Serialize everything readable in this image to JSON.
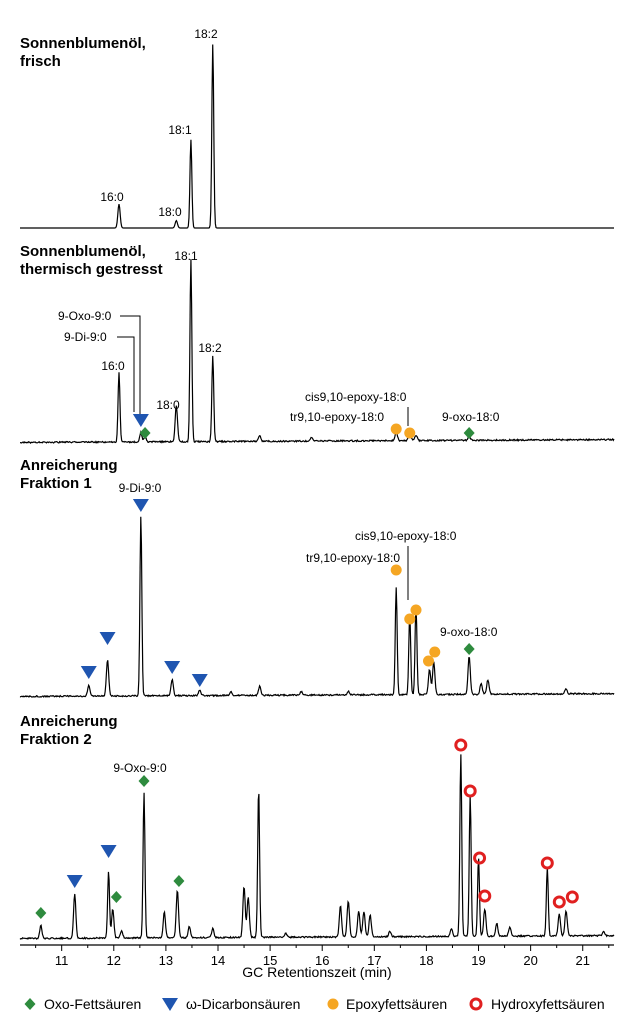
{
  "chart_data": {
    "type": "line",
    "subtype": "stacked gas chromatograms",
    "xlabel": "GC Retentionszeit (min)",
    "xlim": [
      10.2,
      21.6
    ],
    "xticks": [
      11,
      12,
      13,
      14,
      15,
      16,
      17,
      18,
      19,
      20,
      21
    ],
    "colors": {
      "trace": "#000000",
      "oxo": "#2e8b3e",
      "dicarbon": "#1f55b0",
      "epoxy": "#f5a623",
      "hydroxy": "#e02020"
    },
    "legend": {
      "placement": "bottom",
      "items": [
        {
          "label": "Oxo-Fettsäuren",
          "marker": "diamond",
          "color": "#2e8b3e"
        },
        {
          "label": "ω-Dicarbonsäuren",
          "marker": "triangle-down",
          "color": "#1f55b0"
        },
        {
          "label": "Epoxyfettsäuren",
          "marker": "circle",
          "color": "#f5a623"
        },
        {
          "label": "Hydroxyfettsäuren",
          "marker": "ring",
          "color": "#e02020"
        }
      ]
    },
    "panels": [
      {
        "title_lines": [
          "Sonnenblumenöl,",
          "frisch"
        ],
        "peaks": [
          {
            "x": 12.1,
            "h": 0.13
          },
          {
            "x": 13.2,
            "h": 0.04
          },
          {
            "x": 13.48,
            "h": 0.48
          },
          {
            "x": 13.9,
            "h": 1.0
          }
        ],
        "labels": [
          {
            "text": "16:0",
            "x": 12.1
          },
          {
            "text": "18:0",
            "x": 13.2
          },
          {
            "text": "18:1",
            "x": 13.48
          },
          {
            "text": "18:2",
            "x": 13.9
          }
        ],
        "markers": []
      },
      {
        "title_lines": [
          "Sonnenblumenöl,",
          "thermisch gestresst"
        ],
        "peaks": [
          {
            "x": 12.1,
            "h": 0.38
          },
          {
            "x": 12.52,
            "h": 0.05
          },
          {
            "x": 12.6,
            "h": 0.03
          },
          {
            "x": 13.2,
            "h": 0.2
          },
          {
            "x": 13.48,
            "h": 1.0
          },
          {
            "x": 13.9,
            "h": 0.47
          },
          {
            "x": 14.8,
            "h": 0.03
          },
          {
            "x": 15.8,
            "h": 0.02
          },
          {
            "x": 17.42,
            "h": 0.05
          },
          {
            "x": 17.68,
            "h": 0.05
          },
          {
            "x": 17.8,
            "h": 0.03
          },
          {
            "x": 18.82,
            "h": 0.02
          }
        ],
        "labels": [
          {
            "text": "16:0",
            "x": 12.1
          },
          {
            "text": "18:0",
            "x": 13.2
          },
          {
            "text": "18:1",
            "x": 13.48
          },
          {
            "text": "18:2",
            "x": 13.9
          },
          {
            "text": "9-Oxo-9:0",
            "x": 12.6
          },
          {
            "text": "9-Di-9:0",
            "x": 12.52
          },
          {
            "text": "cis9,10-epoxy-18:0",
            "x": 17.68
          },
          {
            "text": "tr9,10-epoxy-18:0",
            "x": 17.42
          },
          {
            "text": "9-oxo-18:0",
            "x": 18.82
          }
        ],
        "markers": [
          {
            "type": "dicarbon",
            "x": 12.52
          },
          {
            "type": "oxo",
            "x": 12.6
          },
          {
            "type": "epoxy",
            "x": 17.42
          },
          {
            "type": "epoxy",
            "x": 17.68
          },
          {
            "type": "oxo",
            "x": 18.82
          }
        ]
      },
      {
        "title_lines": [
          "Anreicherung",
          "Fraktion 1"
        ],
        "peaks": [
          {
            "x": 11.52,
            "h": 0.06
          },
          {
            "x": 11.88,
            "h": 0.2
          },
          {
            "x": 12.52,
            "h": 1.0
          },
          {
            "x": 13.12,
            "h": 0.09
          },
          {
            "x": 13.65,
            "h": 0.03
          },
          {
            "x": 14.25,
            "h": 0.02
          },
          {
            "x": 14.8,
            "h": 0.05
          },
          {
            "x": 15.6,
            "h": 0.02
          },
          {
            "x": 16.5,
            "h": 0.02
          },
          {
            "x": 17.42,
            "h": 0.6
          },
          {
            "x": 17.68,
            "h": 0.45
          },
          {
            "x": 17.8,
            "h": 0.5
          },
          {
            "x": 18.06,
            "h": 0.14
          },
          {
            "x": 18.14,
            "h": 0.18
          },
          {
            "x": 18.82,
            "h": 0.21
          },
          {
            "x": 19.05,
            "h": 0.06
          },
          {
            "x": 19.18,
            "h": 0.08
          },
          {
            "x": 20.68,
            "h": 0.03
          }
        ],
        "labels": [
          {
            "text": "9-Di-9:0",
            "x": 12.52
          },
          {
            "text": "cis9,10-epoxy-18:0",
            "x": 17.68
          },
          {
            "text": "tr9,10-epoxy-18:0",
            "x": 17.42
          },
          {
            "text": "9-oxo-18:0",
            "x": 18.82
          }
        ],
        "markers": [
          {
            "type": "dicarbon",
            "x": 11.52
          },
          {
            "type": "dicarbon",
            "x": 11.88
          },
          {
            "type": "dicarbon",
            "x": 12.52
          },
          {
            "type": "dicarbon",
            "x": 13.12
          },
          {
            "type": "dicarbon",
            "x": 13.65
          },
          {
            "type": "epoxy",
            "x": 17.42
          },
          {
            "type": "epoxy",
            "x": 17.68
          },
          {
            "type": "epoxy",
            "x": 17.8
          },
          {
            "type": "epoxy",
            "x": 18.04
          },
          {
            "type": "epoxy",
            "x": 18.16
          },
          {
            "type": "oxo",
            "x": 18.82
          }
        ]
      },
      {
        "title_lines": [
          "Anreicherung",
          "Fraktion 2"
        ],
        "peaks": [
          {
            "x": 10.6,
            "h": 0.07
          },
          {
            "x": 11.25,
            "h": 0.24
          },
          {
            "x": 11.9,
            "h": 0.37
          },
          {
            "x": 11.98,
            "h": 0.16
          },
          {
            "x": 12.15,
            "h": 0.04
          },
          {
            "x": 12.58,
            "h": 0.8
          },
          {
            "x": 12.97,
            "h": 0.14
          },
          {
            "x": 13.22,
            "h": 0.26
          },
          {
            "x": 13.45,
            "h": 0.06
          },
          {
            "x": 13.9,
            "h": 0.05
          },
          {
            "x": 14.5,
            "h": 0.28
          },
          {
            "x": 14.58,
            "h": 0.22
          },
          {
            "x": 14.78,
            "h": 0.82
          },
          {
            "x": 15.3,
            "h": 0.02
          },
          {
            "x": 16.35,
            "h": 0.17
          },
          {
            "x": 16.5,
            "h": 0.2
          },
          {
            "x": 16.7,
            "h": 0.14
          },
          {
            "x": 16.8,
            "h": 0.14
          },
          {
            "x": 16.92,
            "h": 0.12
          },
          {
            "x": 17.3,
            "h": 0.03
          },
          {
            "x": 18.48,
            "h": 0.04
          },
          {
            "x": 18.66,
            "h": 1.0
          },
          {
            "x": 18.84,
            "h": 0.78
          },
          {
            "x": 19.0,
            "h": 0.43
          },
          {
            "x": 19.12,
            "h": 0.15
          },
          {
            "x": 19.35,
            "h": 0.07
          },
          {
            "x": 19.6,
            "h": 0.05
          },
          {
            "x": 20.32,
            "h": 0.38
          },
          {
            "x": 20.55,
            "h": 0.12
          },
          {
            "x": 20.68,
            "h": 0.14
          },
          {
            "x": 21.4,
            "h": 0.02
          }
        ],
        "labels": [
          {
            "text": "9-Oxo-9:0",
            "x": 12.58
          }
        ],
        "markers": [
          {
            "type": "oxo",
            "x": 10.6
          },
          {
            "type": "dicarbon",
            "x": 11.25
          },
          {
            "type": "dicarbon",
            "x": 11.9
          },
          {
            "type": "oxo",
            "x": 12.05
          },
          {
            "type": "oxo",
            "x": 12.58
          },
          {
            "type": "oxo",
            "x": 13.25
          },
          {
            "type": "hydroxy",
            "x": 18.66
          },
          {
            "type": "hydroxy",
            "x": 18.84
          },
          {
            "type": "hydroxy",
            "x": 19.02
          },
          {
            "type": "hydroxy",
            "x": 19.12
          },
          {
            "type": "hydroxy",
            "x": 20.32
          },
          {
            "type": "hydroxy",
            "x": 20.55
          },
          {
            "type": "hydroxy",
            "x": 20.8
          }
        ]
      }
    ]
  }
}
